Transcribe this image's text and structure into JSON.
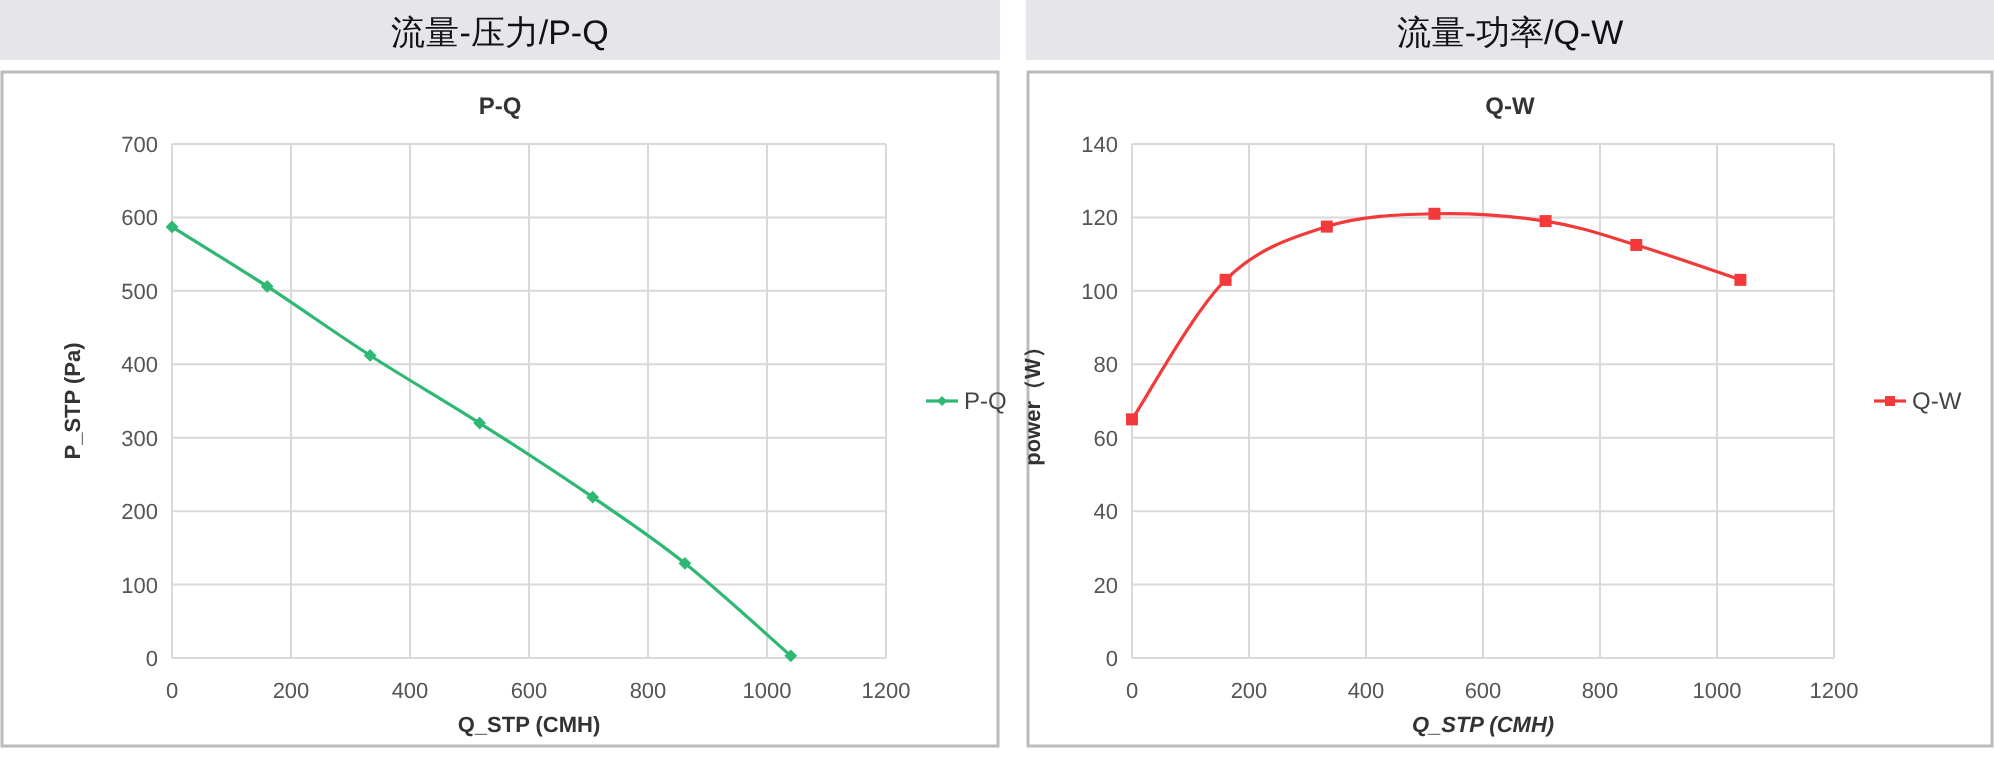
{
  "chart_data": [
    {
      "type": "line",
      "title": "流量-压力/P-Q",
      "subtitle": "P-Q",
      "xlabel": "Q_STP (CMH)",
      "ylabel": "P_STP (Pa)",
      "x": [
        0,
        160,
        333,
        517,
        707,
        862,
        1040
      ],
      "series": [
        {
          "name": "P-Q",
          "color": "#2fb874",
          "values": [
            587,
            506,
            412,
            320,
            219,
            129,
            3
          ]
        }
      ],
      "xlim": [
        0,
        1200
      ],
      "xticks": [
        0,
        200,
        400,
        600,
        800,
        1000,
        1200
      ],
      "ylim": [
        0,
        700
      ],
      "yticks": [
        0,
        100,
        200,
        300,
        400,
        500,
        600,
        700
      ],
      "grid": true,
      "legend": "right",
      "marker": "diamond",
      "line_style": "solid"
    },
    {
      "type": "line",
      "title": "流量-功率/Q-W",
      "subtitle": "Q-W",
      "xlabel": "Q_STP (CMH)",
      "ylabel": "power（W）",
      "x": [
        0,
        160,
        333,
        517,
        707,
        862,
        1040
      ],
      "series": [
        {
          "name": "Q-W",
          "color": "#f23a3a",
          "values": [
            65,
            103,
            117.5,
            121,
            119,
            112.5,
            103
          ]
        }
      ],
      "xlim": [
        0,
        1200
      ],
      "xticks": [
        0,
        200,
        400,
        600,
        800,
        1000,
        1200
      ],
      "ylim": [
        0,
        140
      ],
      "yticks": [
        0,
        20,
        40,
        60,
        80,
        100,
        120,
        140
      ],
      "grid": true,
      "legend": "right",
      "marker": "square",
      "line_style": "solid"
    }
  ]
}
